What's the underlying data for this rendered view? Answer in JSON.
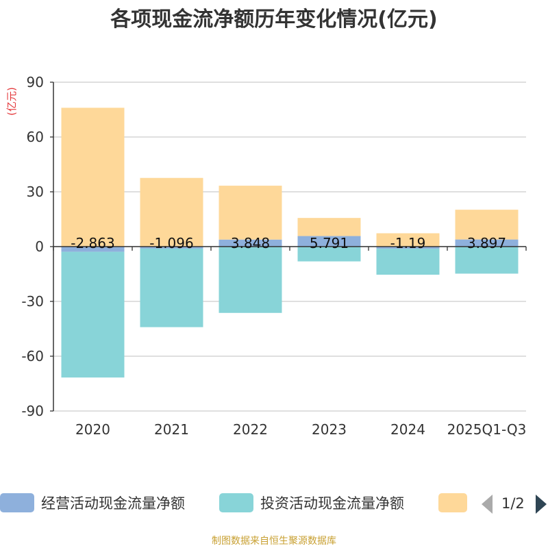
{
  "chart_data": {
    "type": "bar",
    "stacked": true,
    "title": "各项现金流净额历年变化情况(亿元)",
    "ylabel": "(亿元)",
    "xlabel": "",
    "ylim": [
      -90,
      90
    ],
    "yticks": [
      90,
      60,
      30,
      0,
      -30,
      -60,
      -90
    ],
    "grid": true,
    "categories": [
      "2020",
      "2021",
      "2022",
      "2023",
      "2024",
      "2025Q1-Q3"
    ],
    "series": [
      {
        "name": "经营活动现金流量净额",
        "color": "#8eb0dc",
        "values": [
          -2.863,
          -1.096,
          3.848,
          5.791,
          -1.19,
          3.897
        ],
        "labels": [
          "-2.863",
          "-1.096",
          "3.848",
          "5.791",
          "-1.19",
          "3.897"
        ]
      },
      {
        "name": "投资活动现金流量净额",
        "color": "#88d4d8",
        "values": [
          -68.8,
          -43.0,
          -36.3,
          -8.1,
          -14.2,
          -14.8
        ]
      },
      {
        "name": "",
        "color": "#fed899",
        "values": [
          76.0,
          37.6,
          29.5,
          9.9,
          7.3,
          16.3
        ]
      }
    ],
    "legend": {
      "position": "bottom",
      "page": "1/2"
    }
  },
  "source_text": "制图数据来自恒生聚源数据库"
}
